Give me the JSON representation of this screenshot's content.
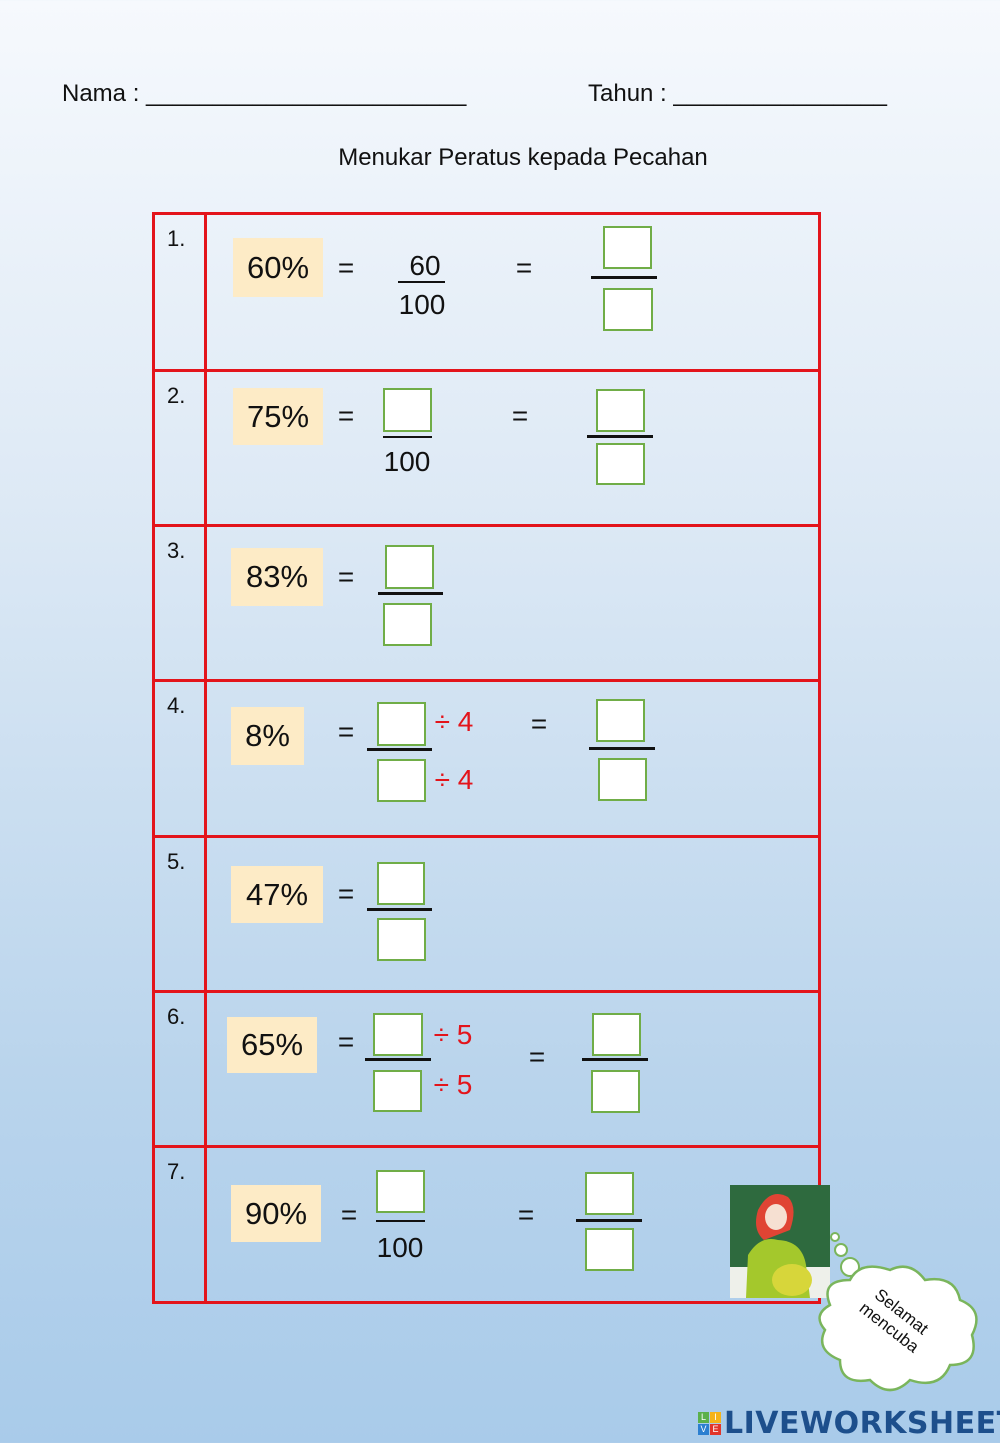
{
  "header": {
    "nama_label": "Nama :",
    "nama_blank": "________________________",
    "tahun_label": "Tahun :",
    "tahun_blank": "________________"
  },
  "title": "Menukar Peratus kepada Pecahan",
  "rows": [
    {
      "number": "1.",
      "percent": "60%",
      "eq1": "=",
      "numerator": "60",
      "denominator": "100",
      "eq2": "="
    },
    {
      "number": "2.",
      "percent": "75%",
      "eq1": "=",
      "denominator": "100",
      "eq2": "="
    },
    {
      "number": "3.",
      "percent": "83%",
      "eq1": "="
    },
    {
      "number": "4.",
      "percent": "8%",
      "eq1": "=",
      "div_top": "÷ 4",
      "div_bottom": "÷ 4",
      "eq2": "="
    },
    {
      "number": "5.",
      "percent": "47%",
      "eq1": "="
    },
    {
      "number": "6.",
      "percent": "65%",
      "eq1": "=",
      "div_top": "÷ 5",
      "div_bottom": "÷ 5",
      "eq2": "="
    },
    {
      "number": "7.",
      "percent": "90%",
      "eq1": "=",
      "denominator": "100",
      "eq2": "="
    }
  ],
  "bubble": {
    "line1": "Selamat",
    "line2": "mencuba"
  },
  "logo": {
    "text": "LIVEWORKSHEETS",
    "tiles": [
      "L",
      "I",
      "V",
      "E"
    ]
  },
  "colors": {
    "table_border": "#e3141b",
    "answer_box_border": "#70ad47",
    "percent_highlight": "#fdebc6",
    "divisor_text": "#e3141b"
  }
}
